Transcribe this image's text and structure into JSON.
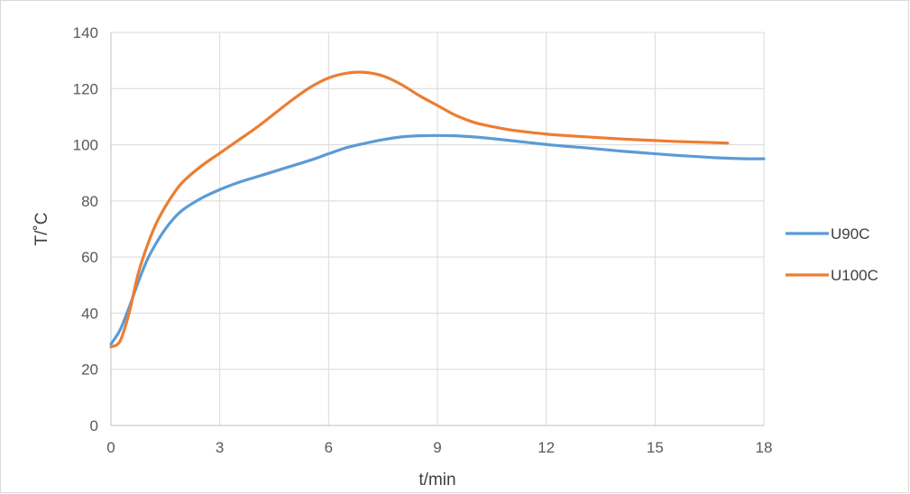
{
  "chart_data": {
    "type": "line",
    "title": "",
    "xlabel": "t/min",
    "ylabel": "T/˚C",
    "xlim": [
      0,
      18
    ],
    "ylim": [
      0,
      140
    ],
    "xticks": [
      0,
      3,
      6,
      9,
      12,
      15,
      18
    ],
    "yticks": [
      0,
      20,
      40,
      60,
      80,
      100,
      120,
      140
    ],
    "grid": true,
    "legend_position": "right",
    "series": [
      {
        "name": "U90C",
        "color": "#5B9BD5",
        "x": [
          0,
          0.25,
          0.5,
          0.75,
          1,
          1.25,
          1.5,
          1.75,
          2,
          2.5,
          3,
          3.5,
          4,
          4.5,
          5,
          5.5,
          6,
          6.5,
          7,
          7.5,
          8,
          8.5,
          9,
          9.5,
          10,
          10.5,
          11,
          11.5,
          12,
          12.5,
          13,
          13.5,
          14,
          14.5,
          15,
          15.5,
          16,
          16.5,
          17,
          17.5,
          18
        ],
        "y": [
          29,
          34,
          42,
          51,
          59,
          65,
          70,
          74,
          77,
          81,
          84,
          86.5,
          88.5,
          90.5,
          92.5,
          94.5,
          96.8,
          99,
          100.5,
          101.8,
          102.8,
          103.2,
          103.3,
          103.2,
          102.8,
          102.2,
          101.5,
          100.8,
          100.1,
          99.5,
          99,
          98.4,
          97.8,
          97.3,
          96.8,
          96.3,
          95.9,
          95.5,
          95.2,
          95,
          95
        ]
      },
      {
        "name": "U100C",
        "color": "#ED7D31",
        "x": [
          0,
          0.25,
          0.5,
          0.75,
          1,
          1.25,
          1.5,
          1.75,
          2,
          2.5,
          3,
          3.5,
          4,
          4.5,
          5,
          5.5,
          6,
          6.5,
          7,
          7.5,
          8,
          8.5,
          9,
          9.5,
          10,
          10.5,
          11,
          11.5,
          12,
          12.5,
          13,
          13.5,
          14,
          14.5,
          15,
          15.5,
          16,
          16.5,
          17
        ],
        "y": [
          28,
          30,
          40,
          54,
          64,
          72,
          78,
          83,
          87,
          92.5,
          97,
          101.5,
          106,
          111,
          116,
          120.5,
          123.8,
          125.5,
          125.8,
          124.5,
          121.5,
          117.5,
          114,
          110.5,
          108,
          106.5,
          105.3,
          104.5,
          103.8,
          103.3,
          102.9,
          102.5,
          102.1,
          101.8,
          101.5,
          101.2,
          101,
          100.8,
          100.6
        ]
      }
    ]
  }
}
